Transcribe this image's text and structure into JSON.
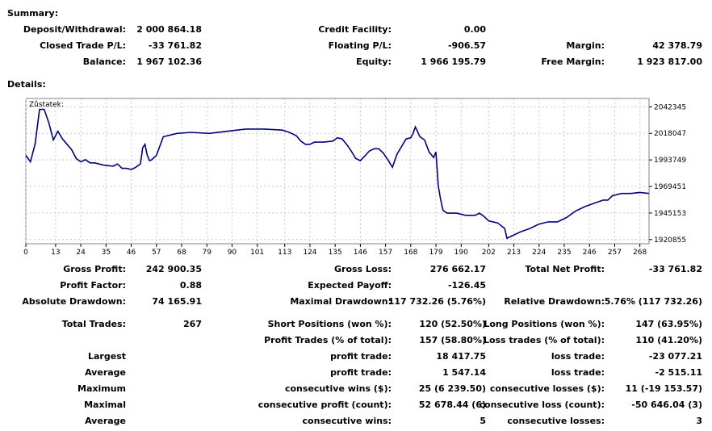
{
  "summary": {
    "title": "Summary:",
    "deposit_label": "Deposit/Withdrawal:",
    "deposit_value": "2 000 864.18",
    "credit_label": "Credit Facility:",
    "credit_value": "0.00",
    "closed_label": "Closed Trade P/L:",
    "closed_value": "-33 761.82",
    "floating_label": "Floating P/L:",
    "floating_value": "-906.57",
    "margin_label": "Margin:",
    "margin_value": "42 378.79",
    "balance_label": "Balance:",
    "balance_value": "1 967 102.36",
    "equity_label": "Equity:",
    "equity_value": "1 966 195.79",
    "free_margin_label": "Free Margin:",
    "free_margin_value": "1 923 817.00"
  },
  "details": {
    "title": "Details:",
    "gross_profit_label": "Gross Profit:",
    "gross_profit_value": "242 900.35",
    "gross_loss_label": "Gross Loss:",
    "gross_loss_value": "276 662.17",
    "total_net_label": "Total Net Profit:",
    "total_net_value": "-33 761.82",
    "profit_factor_label": "Profit Factor:",
    "profit_factor_value": "0.88",
    "expected_payoff_label": "Expected Payoff:",
    "expected_payoff_value": "-126.45",
    "abs_dd_label": "Absolute Drawdown:",
    "abs_dd_value": "74 165.91",
    "max_dd_label": "Maximal Drawdown:",
    "max_dd_value": "117 732.26 (5.76%)",
    "rel_dd_label": "Relative Drawdown:",
    "rel_dd_value": "5.76% (117 732.26)",
    "total_trades_label": "Total Trades:",
    "total_trades_value": "267",
    "short_label": "Short Positions (won %):",
    "short_value": "120 (52.50%)",
    "long_label": "Long Positions (won %):",
    "long_value": "147 (63.95%)",
    "profit_trades_label": "Profit Trades (% of total):",
    "profit_trades_value": "157 (58.80%)",
    "loss_trades_label": "Loss trades (% of total):",
    "loss_trades_value": "110 (41.20%)",
    "largest_label": "Largest",
    "largest_profit_label": "profit trade:",
    "largest_profit_value": "18 417.75",
    "largest_loss_label": "loss trade:",
    "largest_loss_value": "-23 077.21",
    "average_label": "Average",
    "average_profit_label": "profit trade:",
    "average_profit_value": "1 547.14",
    "average_loss_label": "loss trade:",
    "average_loss_value": "-2 515.11",
    "maximum_label": "Maximum",
    "max_cons_wins_label": "consecutive wins ($):",
    "max_cons_wins_value": "25 (6 239.50)",
    "max_cons_losses_label": "consecutive losses ($):",
    "max_cons_losses_value": "11 (-19 153.57)",
    "maximal_label": "Maximal",
    "maximal_profit_label": "consecutive profit (count):",
    "maximal_profit_value": "52 678.44 (6)",
    "maximal_loss_label": "consecutive loss (count):",
    "maximal_loss_value": "-50 646.04 (3)",
    "average2_label": "Average",
    "avg_cons_wins_label": "consecutive wins:",
    "avg_cons_wins_value": "5",
    "avg_cons_losses_label": "consecutive losses:",
    "avg_cons_losses_value": "3"
  },
  "chart_data": {
    "type": "line",
    "title": "Zůstatek:",
    "x_ticks": [
      0,
      13,
      24,
      35,
      46,
      57,
      68,
      79,
      90,
      101,
      113,
      124,
      135,
      146,
      157,
      168,
      179,
      190,
      202,
      213,
      224,
      235,
      246,
      257,
      268
    ],
    "y_ticks": [
      1920855,
      1945153,
      1969451,
      1993749,
      2018047,
      2042345
    ],
    "xlim": [
      0,
      272
    ],
    "ylim": [
      1917000,
      2050000
    ],
    "line_color": "#00007f",
    "grid": true,
    "x": [
      0,
      2,
      4,
      6,
      8,
      10,
      12,
      14,
      16,
      18,
      20,
      22,
      24,
      26,
      28,
      30,
      34,
      38,
      40,
      42,
      44,
      46,
      48,
      50,
      51,
      52,
      53,
      54,
      55,
      57,
      60,
      66,
      72,
      80,
      88,
      96,
      104,
      112,
      115,
      118,
      120,
      122,
      124,
      126,
      128,
      130,
      134,
      136,
      138,
      140,
      142,
      144,
      146,
      150,
      152,
      154,
      156,
      158,
      160,
      162,
      166,
      168,
      169,
      170,
      172,
      174,
      176,
      178,
      179,
      180,
      181,
      182,
      183,
      184,
      188,
      192,
      194,
      196,
      198,
      200,
      202,
      206,
      209,
      210,
      212,
      216,
      220,
      224,
      228,
      232,
      236,
      240,
      244,
      248,
      252,
      254,
      256,
      260,
      264,
      268,
      272
    ],
    "y": [
      1998000,
      1992000,
      2008000,
      2040000,
      2040000,
      2028000,
      2012000,
      2020000,
      2013000,
      2008000,
      2003000,
      1995000,
      1992000,
      1994000,
      1991000,
      1991000,
      1989000,
      1988000,
      1990000,
      1986000,
      1986000,
      1985000,
      1987000,
      1990000,
      2005000,
      2008000,
      1998000,
      1993000,
      1994000,
      1998000,
      2015000,
      2018000,
      2019000,
      2018000,
      2020000,
      2022000,
      2022000,
      2021000,
      2019000,
      2016000,
      2011000,
      2008000,
      2008000,
      2010000,
      2010000,
      2010000,
      2011000,
      2014000,
      2013000,
      2008000,
      2002000,
      1995000,
      1993000,
      2002000,
      2004000,
      2004000,
      2000000,
      1994000,
      1987000,
      1999000,
      2013000,
      2014000,
      2018000,
      2024000,
      2015000,
      2012000,
      2001000,
      1996000,
      2001000,
      1970000,
      1958000,
      1948000,
      1946000,
      1945000,
      1945000,
      1943000,
      1943000,
      1943000,
      1945000,
      1942000,
      1938000,
      1936000,
      1931000,
      1922000,
      1924000,
      1928000,
      1931000,
      1935000,
      1937000,
      1937000,
      1941000,
      1947000,
      1951000,
      1954000,
      1957000,
      1957000,
      1961000,
      1963000,
      1963000,
      1964000,
      1963000
    ]
  }
}
